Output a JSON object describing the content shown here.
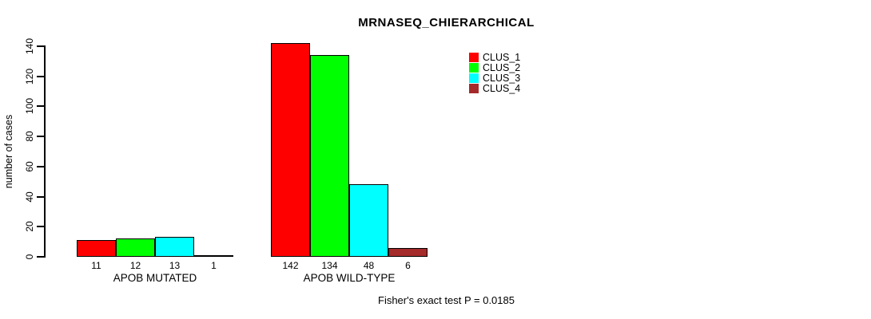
{
  "chart_data": {
    "type": "bar",
    "title": "MRNASEQ_CHIERARCHICAL",
    "ylabel": "number of cases",
    "ylim": [
      0,
      140
    ],
    "yticks": [
      0,
      20,
      40,
      60,
      80,
      100,
      120,
      140
    ],
    "categories": [
      "APOB MUTATED",
      "APOB WILD-TYPE"
    ],
    "series": [
      {
        "name": "CLUS_1",
        "color": "#FF0000",
        "values": [
          11,
          142
        ]
      },
      {
        "name": "CLUS_2",
        "color": "#00FF00",
        "values": [
          12,
          134
        ]
      },
      {
        "name": "CLUS_3",
        "color": "#00FFFF",
        "values": [
          13,
          48
        ]
      },
      {
        "name": "CLUS_4",
        "color": "#A52A2A",
        "values": [
          1,
          6
        ]
      }
    ],
    "bar_value_labels_shown": true,
    "legend_position": "top-right",
    "grid": false,
    "background": "#FFFFFF",
    "axis_color": "#000000"
  },
  "caption": "Fisher's exact test P = 0.0185"
}
